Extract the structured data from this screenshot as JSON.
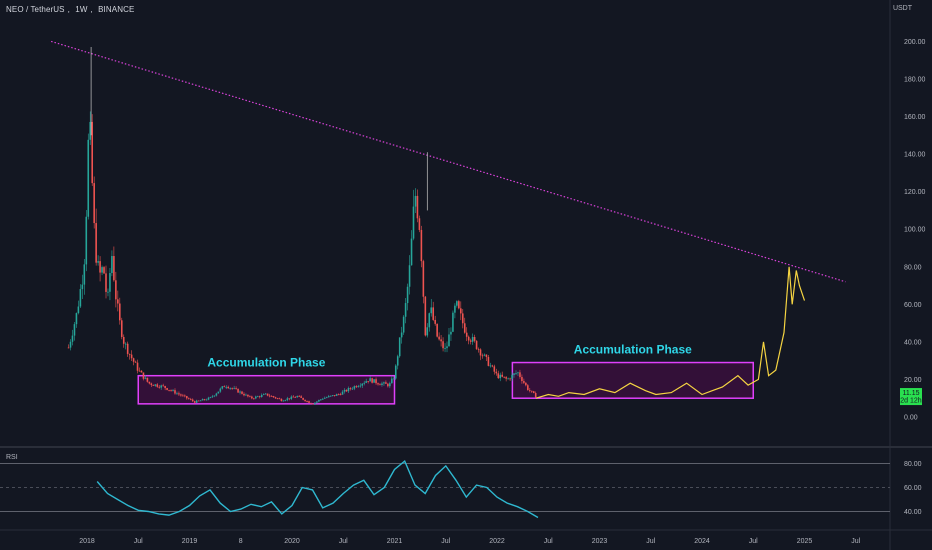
{
  "header": {
    "symbol": "NEO / TetherUS",
    "interval": "1W",
    "exchange": "BINANCE",
    "currency": "USDT"
  },
  "price_badge": {
    "price": "11.15",
    "countdown": "2d 12h"
  },
  "rsi_label": "RSI",
  "colors": {
    "background": "#131722",
    "up": "#26a69a",
    "down": "#ef5350",
    "projection": "#f5d442",
    "trendline": "#d942d9",
    "box": "#e040fb",
    "annotation": "#2fd7e8",
    "rsi_line": "#2fb8d0"
  },
  "chart_data": [
    {
      "type": "candlestick",
      "title": "",
      "x_ticks": [
        "2018",
        "Jul",
        "2019",
        "8",
        "2020",
        "Jul",
        "2021",
        "Jul",
        "2022",
        "Jul",
        "2023",
        "Jul",
        "2024",
        "Jul",
        "2025",
        "Jul"
      ],
      "y_ticks": [
        "0.00",
        "20.00",
        "40.00",
        "60.00",
        "80.00",
        "100.00",
        "120.00",
        "140.00",
        "160.00",
        "180.00",
        "200.00"
      ],
      "ylim": [
        -3,
        210
      ],
      "grid": false,
      "historical_series": {
        "name": "",
        "t": [
          2017.82,
          2017.9,
          2017.97,
          2018.0,
          2018.02,
          2018.04,
          2018.06,
          2018.08,
          2018.12,
          2018.16,
          2018.2,
          2018.24,
          2018.28,
          2018.32,
          2018.36,
          2018.42,
          2018.5,
          2018.6,
          2018.75,
          2018.9,
          2019.05,
          2019.2,
          2019.35,
          2019.5,
          2019.6,
          2019.75,
          2019.9,
          2020.05,
          2020.2,
          2020.3,
          2020.45,
          2020.6,
          2020.75,
          2020.85,
          2020.95,
          2021.0,
          2021.05,
          2021.1,
          2021.15,
          2021.2,
          2021.25,
          2021.3,
          2021.35,
          2021.42,
          2021.5,
          2021.6,
          2021.7,
          2021.8,
          2021.9,
          2022.0,
          2022.1,
          2022.2,
          2022.3,
          2022.38
        ],
        "close": [
          37,
          55,
          80,
          120,
          160,
          140,
          110,
          90,
          75,
          80,
          60,
          88,
          65,
          50,
          40,
          33,
          25,
          18,
          16,
          12,
          8,
          10,
          17,
          13,
          10,
          12,
          9,
          11,
          7,
          10,
          12,
          16,
          20,
          18,
          17,
          22,
          40,
          55,
          80,
          120,
          100,
          45,
          58,
          42,
          35,
          60,
          45,
          38,
          30,
          22,
          20,
          24,
          15,
          11
        ]
      },
      "projection_series": {
        "name": "",
        "t": [
          2022.38,
          2022.5,
          2022.6,
          2022.7,
          2022.85,
          2023.0,
          2023.15,
          2023.3,
          2023.45,
          2023.55,
          2023.7,
          2023.85,
          2024.0,
          2024.1,
          2024.2,
          2024.35,
          2024.45,
          2024.55,
          2024.6,
          2024.65,
          2024.72,
          2024.8,
          2024.85,
          2024.88,
          2024.92,
          2024.95,
          2025.0
        ],
        "close": [
          10,
          12,
          11,
          13,
          12,
          15,
          13,
          18,
          14,
          12,
          13,
          18,
          12,
          14,
          16,
          22,
          17,
          20,
          40,
          22,
          25,
          45,
          80,
          60,
          78,
          70,
          62
        ]
      },
      "annotations": [
        {
          "text": "Accumulation Phase",
          "t_start": 2018.5,
          "t_end": 2021.0,
          "y_low": 7,
          "y_high": 22
        },
        {
          "text": "Accumulation Phase",
          "t_start": 2022.15,
          "t_end": 2024.5,
          "y_low": 10,
          "y_high": 29
        }
      ],
      "trendline": {
        "from": [
          2017.65,
          200
        ],
        "to": [
          2025.4,
          72
        ]
      }
    },
    {
      "type": "line",
      "title": "RSI",
      "y_ticks": [
        "40.00",
        "60.00",
        "80.00"
      ],
      "ylim": [
        30,
        90
      ],
      "series": [
        {
          "name": "",
          "t": [
            2018.1,
            2018.2,
            2018.3,
            2018.4,
            2018.5,
            2018.6,
            2018.7,
            2018.8,
            2018.9,
            2019.0,
            2019.1,
            2019.2,
            2019.3,
            2019.4,
            2019.5,
            2019.6,
            2019.7,
            2019.8,
            2019.9,
            2020.0,
            2020.1,
            2020.2,
            2020.3,
            2020.4,
            2020.5,
            2020.6,
            2020.7,
            2020.8,
            2020.9,
            2021.0,
            2021.1,
            2021.2,
            2021.3,
            2021.4,
            2021.5,
            2021.6,
            2021.7,
            2021.8,
            2021.9,
            2022.0,
            2022.1,
            2022.2,
            2022.3,
            2022.4
          ],
          "values": [
            65,
            55,
            50,
            45,
            41,
            40,
            38,
            37,
            40,
            45,
            53,
            58,
            47,
            40,
            42,
            46,
            44,
            48,
            38,
            45,
            60,
            58,
            43,
            47,
            55,
            62,
            66,
            54,
            60,
            75,
            82,
            62,
            55,
            70,
            78,
            66,
            52,
            62,
            60,
            52,
            47,
            44,
            40,
            35
          ]
        }
      ]
    }
  ]
}
